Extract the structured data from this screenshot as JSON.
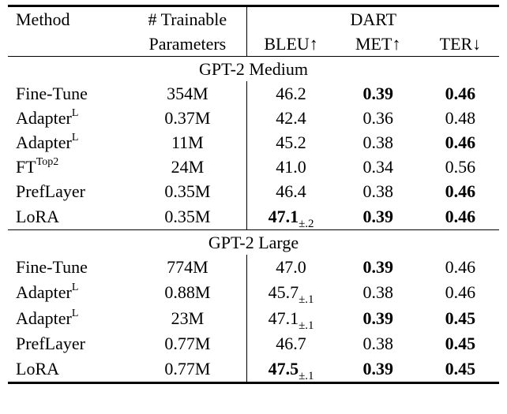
{
  "header": {
    "method": "Method",
    "params_line1": "# Trainable",
    "params_line2": "Parameters",
    "dataset": "DART",
    "bleu": "BLEU↑",
    "met": "MET↑",
    "ter": "TER↓"
  },
  "sections": [
    {
      "title": "GPT-2 Medium",
      "rows": [
        {
          "method": "Fine-Tune",
          "method_sup": "",
          "params": "354M",
          "bleu": "46.2",
          "bleu_sub": "",
          "bleu_bold": false,
          "met": "0.39",
          "met_bold": true,
          "ter": "0.46",
          "ter_bold": true
        },
        {
          "method": "Adapter",
          "method_sup": "L",
          "params": "0.37M",
          "bleu": "42.4",
          "bleu_sub": "",
          "bleu_bold": false,
          "met": "0.36",
          "met_bold": false,
          "ter": "0.48",
          "ter_bold": false
        },
        {
          "method": "Adapter",
          "method_sup": "L",
          "params": "11M",
          "bleu": "45.2",
          "bleu_sub": "",
          "bleu_bold": false,
          "met": "0.38",
          "met_bold": false,
          "ter": "0.46",
          "ter_bold": true
        },
        {
          "method": "FT",
          "method_sup": "Top2",
          "params": "24M",
          "bleu": "41.0",
          "bleu_sub": "",
          "bleu_bold": false,
          "met": "0.34",
          "met_bold": false,
          "ter": "0.56",
          "ter_bold": false
        },
        {
          "method": "PrefLayer",
          "method_sup": "",
          "params": "0.35M",
          "bleu": "46.4",
          "bleu_sub": "",
          "bleu_bold": false,
          "met": "0.38",
          "met_bold": false,
          "ter": "0.46",
          "ter_bold": true
        },
        {
          "method": "LoRA",
          "method_sup": "",
          "params": "0.35M",
          "bleu": "47.1",
          "bleu_sub": "±.2",
          "bleu_bold": true,
          "met": "0.39",
          "met_bold": true,
          "ter": "0.46",
          "ter_bold": true
        }
      ]
    },
    {
      "title": "GPT-2 Large",
      "rows": [
        {
          "method": "Fine-Tune",
          "method_sup": "",
          "params": "774M",
          "bleu": "47.0",
          "bleu_sub": "",
          "bleu_bold": false,
          "met": "0.39",
          "met_bold": true,
          "ter": "0.46",
          "ter_bold": false
        },
        {
          "method": "Adapter",
          "method_sup": "L",
          "params": "0.88M",
          "bleu": "45.7",
          "bleu_sub": "±.1",
          "bleu_bold": false,
          "met": "0.38",
          "met_bold": false,
          "ter": "0.46",
          "ter_bold": false
        },
        {
          "method": "Adapter",
          "method_sup": "L",
          "params": "23M",
          "bleu": "47.1",
          "bleu_sub": "±.1",
          "bleu_bold": false,
          "met": "0.39",
          "met_bold": true,
          "ter": "0.45",
          "ter_bold": true
        },
        {
          "method": "PrefLayer",
          "method_sup": "",
          "params": "0.77M",
          "bleu": "46.7",
          "bleu_sub": "",
          "bleu_bold": false,
          "met": "0.38",
          "met_bold": false,
          "ter": "0.45",
          "ter_bold": true
        },
        {
          "method": "LoRA",
          "method_sup": "",
          "params": "0.77M",
          "bleu": "47.5",
          "bleu_sub": "±.1",
          "bleu_bold": true,
          "met": "0.39",
          "met_bold": true,
          "ter": "0.45",
          "ter_bold": true
        }
      ]
    }
  ]
}
